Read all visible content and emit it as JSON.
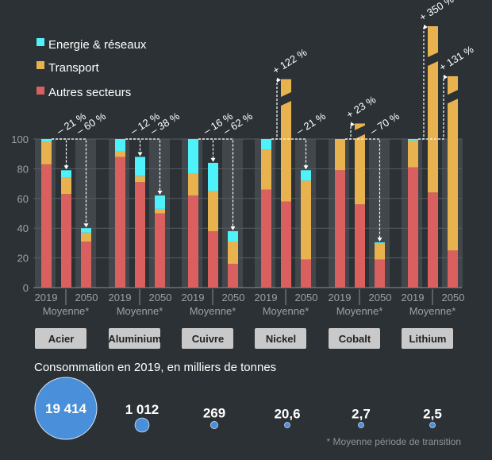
{
  "colors": {
    "background": "#2b3135",
    "autres": "#d9605f",
    "transport": "#e8b34f",
    "energie": "#4ef2fb",
    "bubble": "#4a8fd9",
    "button": "#c9c9c9"
  },
  "chart_data": {
    "type": "bar",
    "stacked": true,
    "legend": {
      "position": "top-left",
      "entries": [
        "Energie & réseaux",
        "Transport",
        "Autres secteurs"
      ]
    },
    "yaxis": {
      "ylim": [
        0,
        100
      ],
      "ticks": [
        "0",
        "20",
        "40",
        "60",
        "80",
        "100"
      ],
      "grid": true
    },
    "column_labels": {
      "start": "2019",
      "mid": "Moyenne*",
      "end": "2050"
    },
    "groups": [
      {
        "metal": "Acier",
        "bars": [
          {
            "autres": 83,
            "transport": 15,
            "energie": 2
          },
          {
            "autres": 63,
            "transport": 11,
            "energie": 5,
            "change": "– 21 %"
          },
          {
            "autres": 31,
            "transport": 6,
            "energie": 3,
            "change": "– 60 %"
          }
        ]
      },
      {
        "metal": "Aluminium",
        "bars": [
          {
            "autres": 88,
            "transport": 4,
            "energie": 8
          },
          {
            "autres": 71,
            "transport": 4,
            "energie": 13,
            "change": "– 12 %"
          },
          {
            "autres": 50,
            "transport": 3,
            "energie": 9,
            "change": "– 38 %"
          }
        ]
      },
      {
        "metal": "Cuivre",
        "bars": [
          {
            "autres": 62,
            "transport": 15,
            "energie": 23
          },
          {
            "autres": 38,
            "transport": 27,
            "energie": 19,
            "change": "– 16 %"
          },
          {
            "autres": 16,
            "transport": 15,
            "energie": 7,
            "change": "– 62 %"
          }
        ]
      },
      {
        "metal": "Nickel",
        "bars": [
          {
            "autres": 66,
            "transport": 27,
            "energie": 7
          },
          {
            "autres": 58,
            "transport": 164,
            "energie": 0,
            "change": "+ 122 %"
          },
          {
            "autres": 19,
            "transport": 53,
            "energie": 7,
            "change": "– 21 %"
          }
        ]
      },
      {
        "metal": "Cobalt",
        "bars": [
          {
            "autres": 79,
            "transport": 20.5,
            "energie": 0.5
          },
          {
            "autres": 56,
            "transport": 67,
            "energie": 0,
            "change": "+ 23 %"
          },
          {
            "autres": 19,
            "transport": 11,
            "energie": 0.5,
            "change": "– 70 %"
          }
        ]
      },
      {
        "metal": "Lithium",
        "bars": [
          {
            "autres": 81,
            "transport": 18,
            "energie": 1
          },
          {
            "autres": 64,
            "transport": 386,
            "energie": 0,
            "change": "+ 350 %"
          },
          {
            "autres": 25,
            "transport": 206,
            "energie": 0,
            "change": "+ 131 %"
          }
        ]
      }
    ]
  },
  "consumption": {
    "title": "Consommation en 2019, en milliers de tonnes",
    "values": [
      "19 414",
      "1 012",
      "269",
      "20,6",
      "2,7",
      "2,5"
    ],
    "amounts": [
      19414,
      1012,
      269,
      20.6,
      2.7,
      2.5
    ]
  },
  "footnote": "* Moyenne période de transition"
}
